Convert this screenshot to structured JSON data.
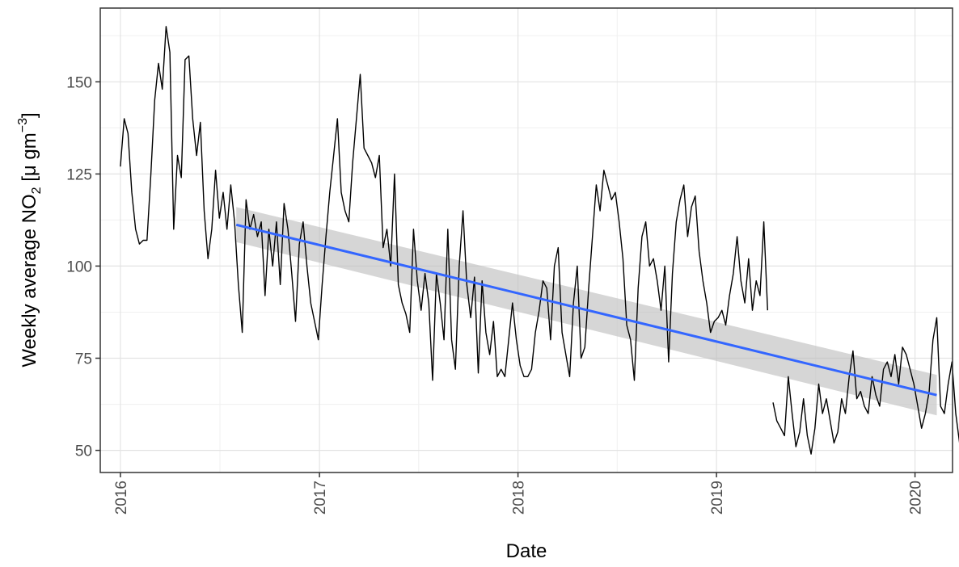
{
  "chart_data": {
    "type": "line",
    "xlabel": "Date",
    "ylabel": {
      "prefix": "Weekly average NO",
      "subscript": "2",
      "unit_open": " [μ gm",
      "superscript": "−3",
      "unit_close": "]"
    },
    "x_axis_type": "date",
    "xlim": [
      "2015-11-25",
      "2020-03-10"
    ],
    "ylim": [
      44,
      170
    ],
    "x_ticks": [
      "2016-01-01",
      "2017-01-01",
      "2018-01-01",
      "2019-01-01",
      "2020-01-01"
    ],
    "x_tick_labels": [
      "2016",
      "2017",
      "2018",
      "2019",
      "2020"
    ],
    "y_ticks": [
      50,
      75,
      100,
      125,
      150
    ],
    "y_tick_labels": [
      "50",
      "75",
      "100",
      "125",
      "150"
    ],
    "grid": true,
    "legend": "none",
    "series": [
      {
        "role": "observed",
        "color": "#000000",
        "segments": [
          {
            "start": "2016-01-01",
            "step_days": 7,
            "values": [
              127,
              140,
              136,
              120,
              110,
              106,
              107,
              107,
              125,
              145,
              155,
              148,
              165,
              158,
              110,
              130,
              124,
              156,
              157,
              140,
              130,
              139,
              115,
              102,
              110,
              126,
              113,
              120,
              110,
              122,
              112,
              95,
              82,
              118,
              110,
              114,
              108,
              112,
              92,
              110,
              100,
              112,
              95,
              117,
              110,
              98,
              85,
              106,
              112,
              100,
              90,
              85,
              80,
              95,
              108,
              120,
              130,
              140,
              120,
              115,
              112,
              128,
              140,
              152,
              132,
              130,
              128,
              124,
              130,
              105,
              110,
              100,
              125,
              95,
              90,
              87,
              82,
              110,
              96,
              88,
              98,
              90,
              69,
              98,
              90,
              80,
              110,
              80,
              72,
              100,
              115,
              95,
              86,
              97,
              71,
              96,
              82,
              76,
              85,
              70,
              72,
              70,
              80,
              90,
              80,
              73,
              70,
              70,
              72,
              82,
              88,
              96,
              94,
              80,
              100,
              105,
              82,
              76,
              70,
              90,
              100,
              75,
              78,
              94,
              108,
              122,
              115,
              126,
              122,
              118,
              120,
              112,
              102,
              84,
              80,
              69,
              94,
              108,
              112,
              100,
              102,
              96,
              88,
              100,
              74,
              98,
              112,
              118,
              122,
              108,
              116,
              119,
              104,
              96,
              90,
              82,
              85,
              86,
              88,
              84,
              92,
              98,
              108,
              96,
              90,
              102,
              88,
              96,
              92,
              112,
              88
            ]
          },
          {
            "start": "2019-04-15",
            "step_days": 7,
            "values": [
              63,
              58,
              56,
              54,
              70,
              60,
              51,
              55,
              64,
              54,
              49,
              56,
              68,
              60,
              64,
              58,
              52,
              55,
              64,
              60,
              70,
              77,
              64,
              66,
              62,
              60,
              70,
              65,
              62,
              72,
              74,
              70,
              76,
              68,
              78,
              76,
              72,
              68,
              62,
              56,
              60,
              66,
              80,
              86,
              62,
              60,
              68,
              74,
              60,
              52
            ]
          }
        ]
      },
      {
        "role": "trend",
        "name": "linear fit",
        "color": "#3366ff",
        "x": [
          "2016-08-01",
          "2020-02-10"
        ],
        "y": [
          111.2,
          65.0
        ],
        "ci_upper": [
          116.0,
          70.5
        ],
        "ci_lower": [
          106.5,
          59.5
        ],
        "ci_color": "#bdbdbd"
      }
    ]
  }
}
